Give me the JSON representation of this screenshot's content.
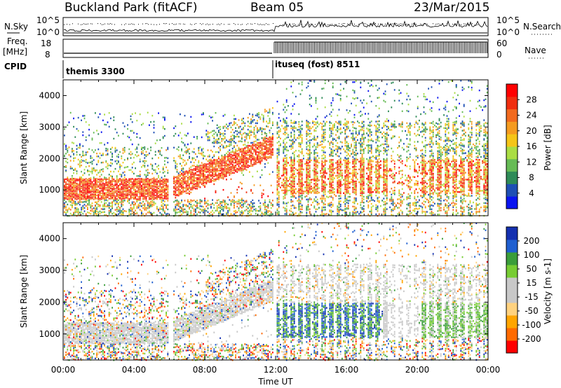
{
  "header": {
    "station": "Buckland Park (fitACF)",
    "beam": "Beam 05",
    "date": "23/Mar/2015"
  },
  "meta_panels": {
    "nsky_label": "N.Sky",
    "nsearch_label": "N.Search",
    "noise_ticks": [
      "10^5",
      "10^0"
    ],
    "freq_label": "Freq.",
    "freq_unit": "[MHz]",
    "freq_ticks": [
      "18",
      "8"
    ],
    "nave_label": "Nave",
    "nave_ticks": [
      "60",
      "0"
    ],
    "cpid_label": "CPID",
    "cpid_1": "themis 3300",
    "cpid_2": "ituseq (fost) 8511"
  },
  "colors": {
    "power": [
      "#0a14f0",
      "#1e4fb4",
      "#2e8b57",
      "#66bb55",
      "#aadd44",
      "#f5c518",
      "#f59b20",
      "#f26a1e",
      "#f02e0f",
      "#ff0000"
    ],
    "velocity": [
      "#ff0000",
      "#ff6a00",
      "#ffa500",
      "#ffd27f",
      "#c8c8c8",
      "#c8c8c8",
      "#77cc33",
      "#3a9d3a",
      "#1f5fd0",
      "#1430b0"
    ]
  },
  "chart_data": [
    {
      "type": "heatmap",
      "title": "Power",
      "xlabel": "",
      "ylabel": "Slant Range [km]",
      "x_range": [
        "00:00",
        "24:00"
      ],
      "ylim": [
        180,
        4500
      ],
      "y_ticks": [
        "1000",
        "2000",
        "3000",
        "4000"
      ],
      "x_ticks": [
        "00:00",
        "04:00",
        "08:00",
        "12:00",
        "16:00",
        "20:00",
        "00:00"
      ],
      "colorbar": {
        "label": "Power [dB]",
        "ticks": [
          "28",
          "24",
          "20",
          "16",
          "12",
          "8",
          "4"
        ],
        "range": [
          0,
          30
        ]
      }
    },
    {
      "type": "heatmap",
      "title": "Velocity",
      "xlabel": "Time UT",
      "ylabel": "Slant Range [km]",
      "x_range": [
        "00:00",
        "24:00"
      ],
      "ylim": [
        180,
        4500
      ],
      "y_ticks": [
        "1000",
        "2000",
        "3000",
        "4000"
      ],
      "x_ticks": [
        "00:00",
        "04:00",
        "08:00",
        "12:00",
        "16:00",
        "20:00",
        "00:00"
      ],
      "colorbar": {
        "label": "Velocity [m s-1]",
        "ticks": [
          "200",
          "100",
          "50",
          "15",
          "-15",
          "-50",
          "-100",
          "-200"
        ],
        "range": [
          -250,
          250
        ]
      }
    }
  ]
}
